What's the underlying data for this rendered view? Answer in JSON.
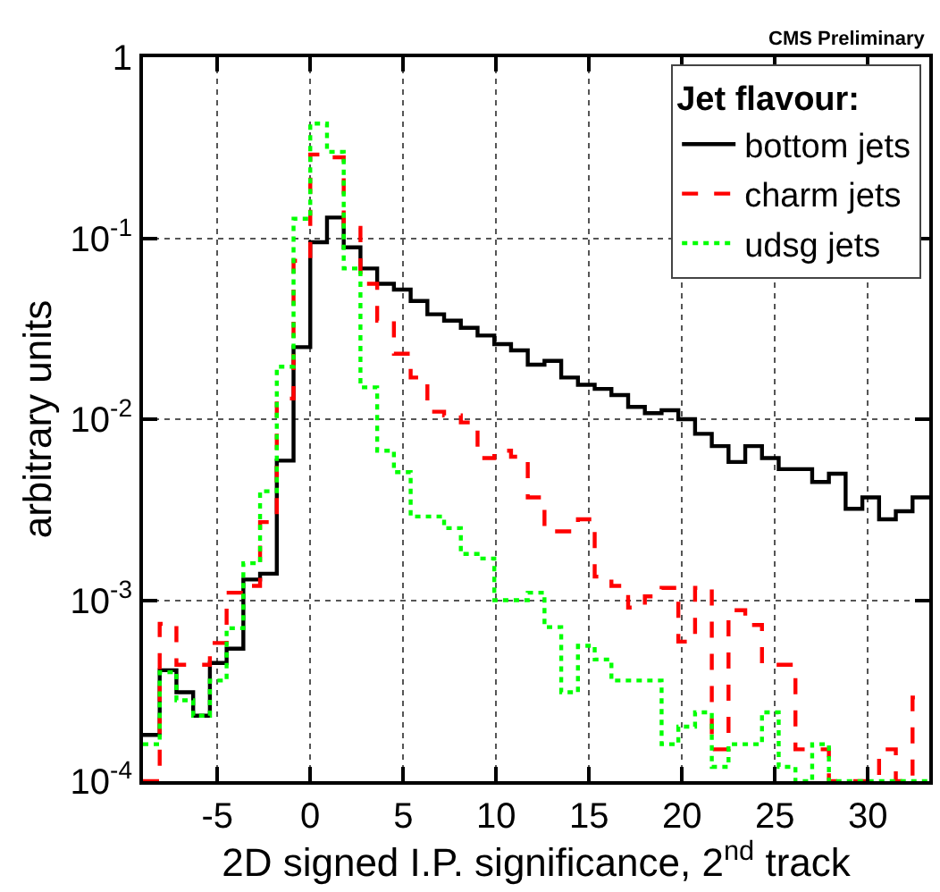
{
  "chart_data": {
    "type": "histogram",
    "xlabel": "2D signed I.P. significance, 2$^{nd}$ track",
    "ylabel": "arbitrary units",
    "legend_title": "Jet flavour:",
    "annotations": [
      "CMS Preliminary"
    ],
    "bins": [
      -9,
      -8.1,
      -7.2,
      -6.3,
      -5.4,
      -4.5,
      -3.6,
      -2.7,
      -1.8,
      -0.9,
      0,
      0.9,
      1.8,
      2.7,
      3.6,
      4.5,
      5.4,
      6.3,
      7.2,
      8.1,
      9,
      9.9,
      10.8,
      11.7,
      12.6,
      13.5,
      14.4,
      15.3,
      16.2,
      17.1,
      18,
      18.9,
      19.8,
      20.7,
      21.6,
      22.5,
      23.4,
      24.3,
      25.2,
      26.1,
      27,
      27.9,
      28.8,
      29.7,
      30.6,
      31.5,
      32.4,
      33.3
    ],
    "series": [
      {
        "name": "bottom jets",
        "color": "#000000",
        "line_style": "solid",
        "values": [
          0.00018,
          0.00041,
          0.00031,
          0.00023,
          0.00045,
          0.00054,
          0.0013,
          0.0014,
          0.0059,
          0.025,
          0.095,
          0.13,
          0.089,
          0.068,
          0.056,
          0.052,
          0.045,
          0.038,
          0.035,
          0.032,
          0.029,
          0.026,
          0.024,
          0.02,
          0.021,
          0.017,
          0.0155,
          0.0147,
          0.0136,
          0.0117,
          0.0108,
          0.0112,
          0.01,
          0.0083,
          0.0071,
          0.0058,
          0.0071,
          0.0061,
          0.0053,
          0.0053,
          0.0045,
          0.005,
          0.0032,
          0.0037,
          0.0028,
          0.0031,
          0.0037
        ]
      },
      {
        "name": "charm jets",
        "color": "#ff0000",
        "line_style": "dashed",
        "values": [
          0.0001,
          0.00074,
          0.00044,
          0.00044,
          0.00058,
          0.0011,
          0.0012,
          0.0027,
          0.013,
          0.075,
          0.29,
          0.28,
          0.114,
          0.056,
          0.035,
          0.023,
          0.017,
          0.011,
          0.0105,
          0.0096,
          0.0061,
          0.0067,
          0.0062,
          0.0037,
          0.0024,
          0.0024,
          0.0028,
          0.00135,
          0.0012,
          0.00091,
          0.00105,
          0.00117,
          0.00059,
          0.00117,
          0.00015,
          0.00088,
          0.00073,
          0.00044,
          0.00044,
          0.00015,
          0.00015,
          0.0001,
          0.0001,
          0.0001,
          0.00015,
          0.0001,
          0.00029
        ]
      },
      {
        "name": "udsg jets",
        "color": "#00ff00",
        "line_style": "dotted",
        "values": [
          0.00016,
          0.0004,
          0.00028,
          0.00023,
          0.00036,
          0.0007,
          0.0016,
          0.004,
          0.0195,
          0.128,
          0.43,
          0.3,
          0.068,
          0.015,
          0.0067,
          0.0051,
          0.0029,
          0.0029,
          0.0025,
          0.0018,
          0.0017,
          0.001,
          0.001,
          0.0011,
          0.00071,
          0.00031,
          0.00056,
          0.00047,
          0.00036,
          0.00036,
          0.00036,
          0.00016,
          0.0002,
          0.00024,
          0.00012,
          0.00016,
          0.00016,
          0.00024,
          0.00012,
          0.0001,
          0.00016,
          0.0001,
          0.0001,
          0.0001,
          0.0001,
          0.0001,
          0.0001
        ]
      }
    ],
    "log": "y",
    "xlim": [
      -9,
      33.3
    ],
    "xticks": [
      -5,
      0,
      5,
      10,
      15,
      20,
      25,
      30
    ],
    "ylim": [
      0.0001,
      1
    ],
    "yticks": [
      {
        "value": 0.0001,
        "label": "10$^{-4}$"
      },
      {
        "value": 0.001,
        "label": "10$^{-3}$"
      },
      {
        "value": 0.01,
        "label": "10$^{-2}$"
      },
      {
        "value": 0.1,
        "label": "10$^{-1}$"
      },
      1
    ],
    "grid": true,
    "legend": "top right"
  }
}
